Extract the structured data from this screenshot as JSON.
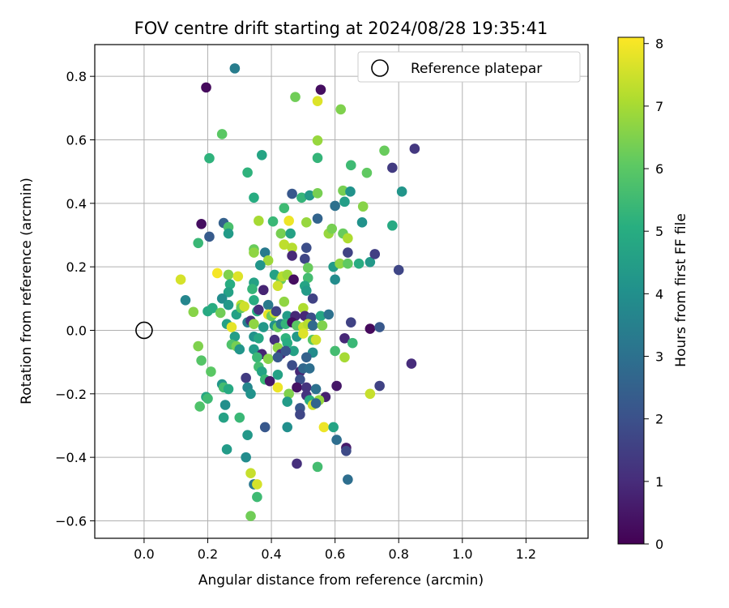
{
  "chart_data": {
    "type": "scatter",
    "title": "FOV centre drift starting at 2024/08/28 19:35:41",
    "xlabel": "Angular distance from reference (arcmin)",
    "ylabel": "Rotation from reference (arcmin)",
    "xlim": [
      -0.155,
      1.395
    ],
    "ylim": [
      -0.655,
      0.9
    ],
    "xticks": [
      0.0,
      0.2,
      0.4,
      0.6,
      0.8,
      1.0,
      1.2
    ],
    "xtick_labels": [
      "0.0",
      "0.2",
      "0.4",
      "0.6",
      "0.8",
      "1.0",
      "1.2"
    ],
    "yticks": [
      -0.6,
      -0.4,
      -0.2,
      0.0,
      0.2,
      0.4,
      0.6,
      0.8
    ],
    "ytick_labels": [
      "−0.6",
      "−0.4",
      "−0.2",
      "0.0",
      "0.2",
      "0.4",
      "0.6",
      "0.8"
    ],
    "grid": true,
    "legend": {
      "placement": "upper right",
      "label": "Reference platepar"
    },
    "reference_point": {
      "x": 0.0,
      "y": 0.0
    },
    "colorbar": {
      "label": "Hours from first FF file",
      "colormap": "viridis",
      "range": [
        0,
        8.1
      ],
      "ticks": [
        0,
        1,
        2,
        3,
        4,
        5,
        6,
        7,
        8
      ],
      "tick_labels": [
        "0",
        "1",
        "2",
        "3",
        "4",
        "5",
        "6",
        "7",
        "8"
      ]
    },
    "points": [
      [
        0.195,
        0.765,
        0.2
      ],
      [
        0.285,
        0.825,
        3.4
      ],
      [
        0.555,
        0.758,
        0.3
      ],
      [
        0.475,
        0.735,
        6.3
      ],
      [
        0.545,
        0.722,
        7.7
      ],
      [
        0.618,
        0.696,
        6.5
      ],
      [
        0.245,
        0.618,
        6.0
      ],
      [
        0.545,
        0.598,
        6.8
      ],
      [
        0.755,
        0.566,
        6.2
      ],
      [
        0.85,
        0.572,
        1.3
      ],
      [
        0.205,
        0.542,
        5.2
      ],
      [
        0.37,
        0.552,
        4.7
      ],
      [
        0.545,
        0.543,
        5.3
      ],
      [
        0.65,
        0.52,
        5.5
      ],
      [
        0.78,
        0.512,
        1.4
      ],
      [
        0.7,
        0.496,
        6.1
      ],
      [
        0.325,
        0.497,
        5.2
      ],
      [
        0.81,
        0.437,
        4.2
      ],
      [
        0.465,
        0.43,
        2.2
      ],
      [
        0.345,
        0.418,
        5.0
      ],
      [
        0.495,
        0.418,
        5.3
      ],
      [
        0.52,
        0.425,
        4.3
      ],
      [
        0.545,
        0.432,
        6.4
      ],
      [
        0.625,
        0.44,
        6.4
      ],
      [
        0.648,
        0.437,
        4.1
      ],
      [
        0.63,
        0.405,
        4.5
      ],
      [
        0.6,
        0.392,
        3.0
      ],
      [
        0.688,
        0.39,
        6.6
      ],
      [
        0.44,
        0.385,
        5.5
      ],
      [
        0.18,
        0.335,
        0.3
      ],
      [
        0.25,
        0.338,
        2.5
      ],
      [
        0.265,
        0.325,
        5.7
      ],
      [
        0.36,
        0.345,
        7.0
      ],
      [
        0.405,
        0.343,
        5.4
      ],
      [
        0.455,
        0.345,
        7.9
      ],
      [
        0.51,
        0.34,
        6.8
      ],
      [
        0.545,
        0.352,
        2.6
      ],
      [
        0.685,
        0.34,
        4.1
      ],
      [
        0.78,
        0.33,
        4.9
      ],
      [
        0.205,
        0.295,
        2.3
      ],
      [
        0.265,
        0.305,
        4.4
      ],
      [
        0.43,
        0.305,
        6.4
      ],
      [
        0.46,
        0.305,
        4.6
      ],
      [
        0.58,
        0.305,
        6.8
      ],
      [
        0.59,
        0.32,
        6.4
      ],
      [
        0.625,
        0.305,
        6.2
      ],
      [
        0.64,
        0.29,
        7.1
      ],
      [
        0.17,
        0.275,
        5.4
      ],
      [
        0.345,
        0.255,
        6.2
      ],
      [
        0.44,
        0.27,
        7.3
      ],
      [
        0.465,
        0.26,
        7.2
      ],
      [
        0.51,
        0.26,
        1.9
      ],
      [
        0.38,
        0.245,
        3.3
      ],
      [
        0.345,
        0.245,
        6.7
      ],
      [
        0.465,
        0.235,
        0.9
      ],
      [
        0.64,
        0.245,
        1.6
      ],
      [
        0.39,
        0.22,
        6.9
      ],
      [
        0.505,
        0.225,
        1.7
      ],
      [
        0.595,
        0.2,
        4.4
      ],
      [
        0.615,
        0.21,
        6.7
      ],
      [
        0.64,
        0.21,
        6.1
      ],
      [
        0.675,
        0.21,
        5.0
      ],
      [
        0.71,
        0.215,
        4.3
      ],
      [
        0.725,
        0.24,
        1.5
      ],
      [
        0.365,
        0.205,
        4.2
      ],
      [
        0.515,
        0.197,
        6.2
      ],
      [
        0.8,
        0.19,
        1.7
      ],
      [
        0.115,
        0.16,
        7.6
      ],
      [
        0.23,
        0.18,
        8.0
      ],
      [
        0.265,
        0.175,
        6.5
      ],
      [
        0.295,
        0.17,
        7.7
      ],
      [
        0.41,
        0.175,
        4.6
      ],
      [
        0.43,
        0.16,
        6.2
      ],
      [
        0.435,
        0.17,
        7.2
      ],
      [
        0.45,
        0.175,
        6.9
      ],
      [
        0.47,
        0.16,
        0.3
      ],
      [
        0.515,
        0.165,
        5.6
      ],
      [
        0.6,
        0.16,
        3.9
      ],
      [
        0.27,
        0.145,
        5.0
      ],
      [
        0.345,
        0.15,
        4.6
      ],
      [
        0.42,
        0.14,
        7.5
      ],
      [
        0.505,
        0.14,
        4.7
      ],
      [
        0.34,
        0.13,
        5.3
      ],
      [
        0.375,
        0.127,
        0.8
      ],
      [
        0.51,
        0.125,
        4.4
      ],
      [
        0.265,
        0.12,
        4.6
      ],
      [
        0.13,
        0.095,
        3.7
      ],
      [
        0.245,
        0.1,
        3.9
      ],
      [
        0.305,
        0.08,
        7.2
      ],
      [
        0.345,
        0.095,
        5.0
      ],
      [
        0.44,
        0.09,
        6.7
      ],
      [
        0.53,
        0.1,
        1.6
      ],
      [
        0.2,
        0.06,
        4.9
      ],
      [
        0.215,
        0.07,
        5.0
      ],
      [
        0.155,
        0.058,
        6.6
      ],
      [
        0.24,
        0.055,
        6.3
      ],
      [
        0.265,
        0.08,
        4.3
      ],
      [
        0.29,
        0.05,
        4.6
      ],
      [
        0.305,
        0.07,
        6.1
      ],
      [
        0.315,
        0.075,
        7.5
      ],
      [
        0.355,
        0.06,
        5.0
      ],
      [
        0.36,
        0.065,
        1.1
      ],
      [
        0.39,
        0.08,
        3.3
      ],
      [
        0.39,
        0.05,
        7.8
      ],
      [
        0.4,
        0.045,
        6.2
      ],
      [
        0.41,
        0.055,
        7.4
      ],
      [
        0.415,
        0.06,
        1.6
      ],
      [
        0.45,
        0.045,
        4.4
      ],
      [
        0.475,
        0.045,
        0.9
      ],
      [
        0.5,
        0.07,
        7.1
      ],
      [
        0.505,
        0.045,
        0.9
      ],
      [
        0.525,
        0.04,
        1.9
      ],
      [
        0.555,
        0.045,
        4.8
      ],
      [
        0.58,
        0.05,
        3.0
      ],
      [
        0.65,
        0.025,
        1.6
      ],
      [
        0.26,
        0.02,
        4.6
      ],
      [
        0.275,
        0.01,
        7.8
      ],
      [
        0.325,
        0.025,
        3.5
      ],
      [
        0.335,
        0.03,
        1.1
      ],
      [
        0.345,
        0.02,
        6.7
      ],
      [
        0.375,
        0.01,
        4.3
      ],
      [
        0.41,
        0.015,
        4.1
      ],
      [
        0.42,
        0.01,
        6.2
      ],
      [
        0.43,
        0.02,
        3.3
      ],
      [
        0.445,
        0.02,
        5.3
      ],
      [
        0.465,
        0.025,
        0.3
      ],
      [
        0.48,
        0.015,
        6.0
      ],
      [
        0.5,
        0.01,
        7.4
      ],
      [
        0.515,
        0.02,
        7.2
      ],
      [
        0.53,
        0.015,
        2.8
      ],
      [
        0.56,
        0.015,
        6.5
      ],
      [
        0.71,
        0.005,
        0.2
      ],
      [
        0.74,
        0.01,
        2.2
      ],
      [
        0.285,
        -0.02,
        4.5
      ],
      [
        0.345,
        -0.02,
        4.1
      ],
      [
        0.36,
        -0.025,
        4.8
      ],
      [
        0.41,
        -0.03,
        1.1
      ],
      [
        0.445,
        -0.025,
        5.2
      ],
      [
        0.48,
        -0.02,
        4.3
      ],
      [
        0.5,
        -0.01,
        7.7
      ],
      [
        0.53,
        -0.03,
        5.9
      ],
      [
        0.54,
        -0.03,
        7.5
      ],
      [
        0.63,
        -0.025,
        0.9
      ],
      [
        0.17,
        -0.05,
        6.5
      ],
      [
        0.275,
        -0.045,
        5.8
      ],
      [
        0.29,
        -0.05,
        6.4
      ],
      [
        0.3,
        -0.06,
        4.2
      ],
      [
        0.345,
        -0.06,
        4.4
      ],
      [
        0.37,
        -0.075,
        0.8
      ],
      [
        0.42,
        -0.055,
        6.7
      ],
      [
        0.43,
        -0.075,
        1.0
      ],
      [
        0.45,
        -0.04,
        5.0
      ],
      [
        0.47,
        -0.065,
        4.6
      ],
      [
        0.53,
        -0.07,
        3.9
      ],
      [
        0.6,
        -0.065,
        5.6
      ],
      [
        0.63,
        -0.085,
        7.0
      ],
      [
        0.655,
        -0.04,
        5.4
      ],
      [
        0.18,
        -0.095,
        5.9
      ],
      [
        0.355,
        -0.085,
        5.4
      ],
      [
        0.39,
        -0.09,
        6.6
      ],
      [
        0.42,
        -0.085,
        2.2
      ],
      [
        0.445,
        -0.065,
        2.1
      ],
      [
        0.51,
        -0.085,
        2.5
      ],
      [
        0.36,
        -0.115,
        5.6
      ],
      [
        0.37,
        -0.13,
        4.7
      ],
      [
        0.465,
        -0.11,
        1.9
      ],
      [
        0.49,
        -0.13,
        0.9
      ],
      [
        0.5,
        -0.12,
        2.7
      ],
      [
        0.52,
        -0.12,
        2.9
      ],
      [
        0.21,
        -0.13,
        6.0
      ],
      [
        0.32,
        -0.15,
        1.4
      ],
      [
        0.38,
        -0.155,
        5.4
      ],
      [
        0.395,
        -0.16,
        0.5
      ],
      [
        0.42,
        -0.14,
        4.6
      ],
      [
        0.49,
        -0.155,
        2.0
      ],
      [
        0.245,
        -0.17,
        4.2
      ],
      [
        0.25,
        -0.18,
        5.6
      ],
      [
        0.265,
        -0.185,
        4.9
      ],
      [
        0.325,
        -0.18,
        3.7
      ],
      [
        0.335,
        -0.2,
        4.1
      ],
      [
        0.42,
        -0.18,
        7.9
      ],
      [
        0.48,
        -0.18,
        0.4
      ],
      [
        0.51,
        -0.18,
        1.2
      ],
      [
        0.54,
        -0.185,
        3.0
      ],
      [
        0.605,
        -0.175,
        0.5
      ],
      [
        0.74,
        -0.175,
        1.6
      ],
      [
        0.84,
        -0.105,
        1.0
      ],
      [
        0.195,
        -0.21,
        4.8
      ],
      [
        0.2,
        -0.215,
        5.5
      ],
      [
        0.455,
        -0.2,
        6.5
      ],
      [
        0.51,
        -0.205,
        1.2
      ],
      [
        0.57,
        -0.21,
        0.7
      ],
      [
        0.71,
        -0.2,
        7.4
      ],
      [
        0.45,
        -0.225,
        4.4
      ],
      [
        0.52,
        -0.22,
        5.0
      ],
      [
        0.55,
        -0.22,
        6.8
      ],
      [
        0.175,
        -0.24,
        5.8
      ],
      [
        0.255,
        -0.235,
        4.0
      ],
      [
        0.49,
        -0.245,
        2.2
      ],
      [
        0.53,
        -0.235,
        7.5
      ],
      [
        0.54,
        -0.23,
        2.6
      ],
      [
        0.49,
        -0.265,
        1.7
      ],
      [
        0.25,
        -0.275,
        4.6
      ],
      [
        0.3,
        -0.275,
        5.4
      ],
      [
        0.38,
        -0.305,
        2.2
      ],
      [
        0.45,
        -0.305,
        4.0
      ],
      [
        0.565,
        -0.305,
        7.9
      ],
      [
        0.595,
        -0.305,
        4.7
      ],
      [
        0.325,
        -0.33,
        4.3
      ],
      [
        0.605,
        -0.345,
        2.9
      ],
      [
        0.26,
        -0.375,
        4.4
      ],
      [
        0.635,
        -0.37,
        0.6
      ],
      [
        0.635,
        -0.38,
        1.8
      ],
      [
        0.32,
        -0.4,
        3.9
      ],
      [
        0.48,
        -0.42,
        1.1
      ],
      [
        0.545,
        -0.43,
        5.6
      ],
      [
        0.335,
        -0.45,
        7.4
      ],
      [
        0.64,
        -0.47,
        2.9
      ],
      [
        0.345,
        -0.485,
        3.2
      ],
      [
        0.355,
        -0.485,
        7.6
      ],
      [
        0.355,
        -0.525,
        5.5
      ],
      [
        0.335,
        -0.585,
        6.3
      ]
    ]
  }
}
